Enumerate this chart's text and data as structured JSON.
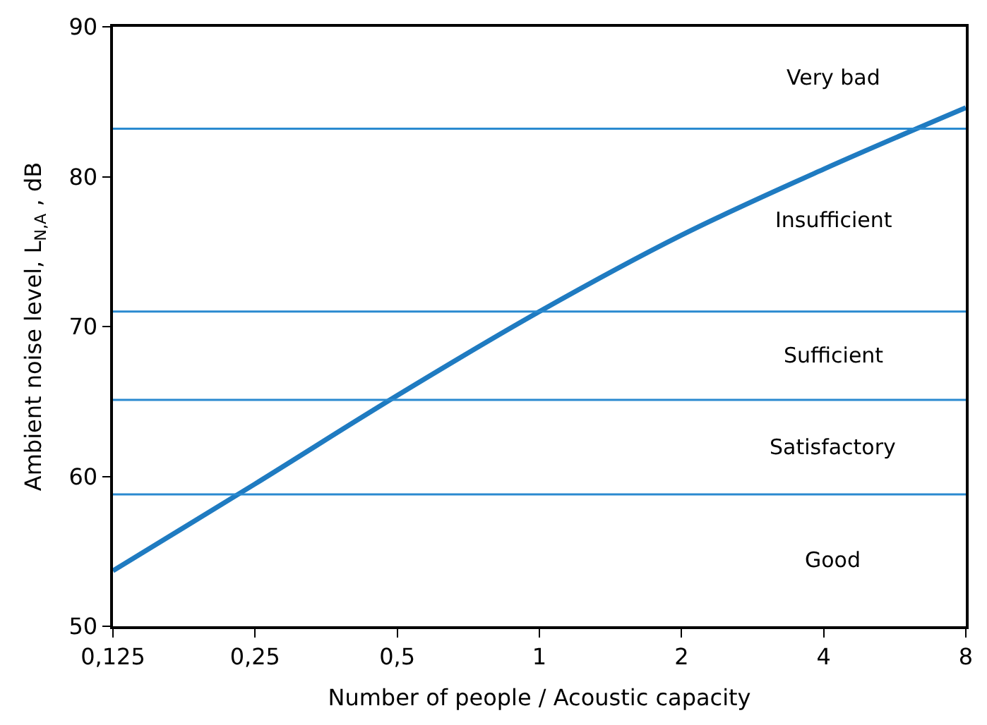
{
  "chart_data": {
    "type": "line",
    "xlabel": "Number of people / Acoustic capacity",
    "ylabel": "Ambient noise level, L$_{N,A}$ , dB",
    "x": [
      0.125,
      0.25,
      0.5,
      1,
      2,
      4,
      8
    ],
    "series": [
      {
        "color": "#1f7bc1",
        "values": [
          53.7,
          59.5,
          65.4,
          71.0,
          76.1,
          80.5,
          84.6
        ]
      }
    ],
    "xlim": [
      0.125,
      8
    ],
    "ylim": [
      50,
      90
    ],
    "log": "x",
    "xticks": [
      {
        "value": 0.125,
        "label": "0,125"
      },
      {
        "value": 0.25,
        "label": "0,25"
      },
      {
        "value": 0.5,
        "label": "0,5"
      },
      1,
      2,
      4,
      8
    ],
    "yticks": [
      50,
      60,
      70,
      80,
      90
    ],
    "marker": "none",
    "line_style": "solid",
    "ref_lines": [
      {
        "axis": "y",
        "value": 83.2,
        "color": "#2a8ad0"
      },
      {
        "axis": "y",
        "value": 71.0,
        "color": "#2a8ad0"
      },
      {
        "axis": "y",
        "value": 65.1,
        "color": "#2a8ad0"
      },
      {
        "axis": "y",
        "value": 58.8,
        "color": "#2a8ad0"
      }
    ],
    "annotations": [
      "Very bad",
      "Insufficient",
      "Sufficient",
      "Satisfactory",
      "Good"
    ]
  }
}
